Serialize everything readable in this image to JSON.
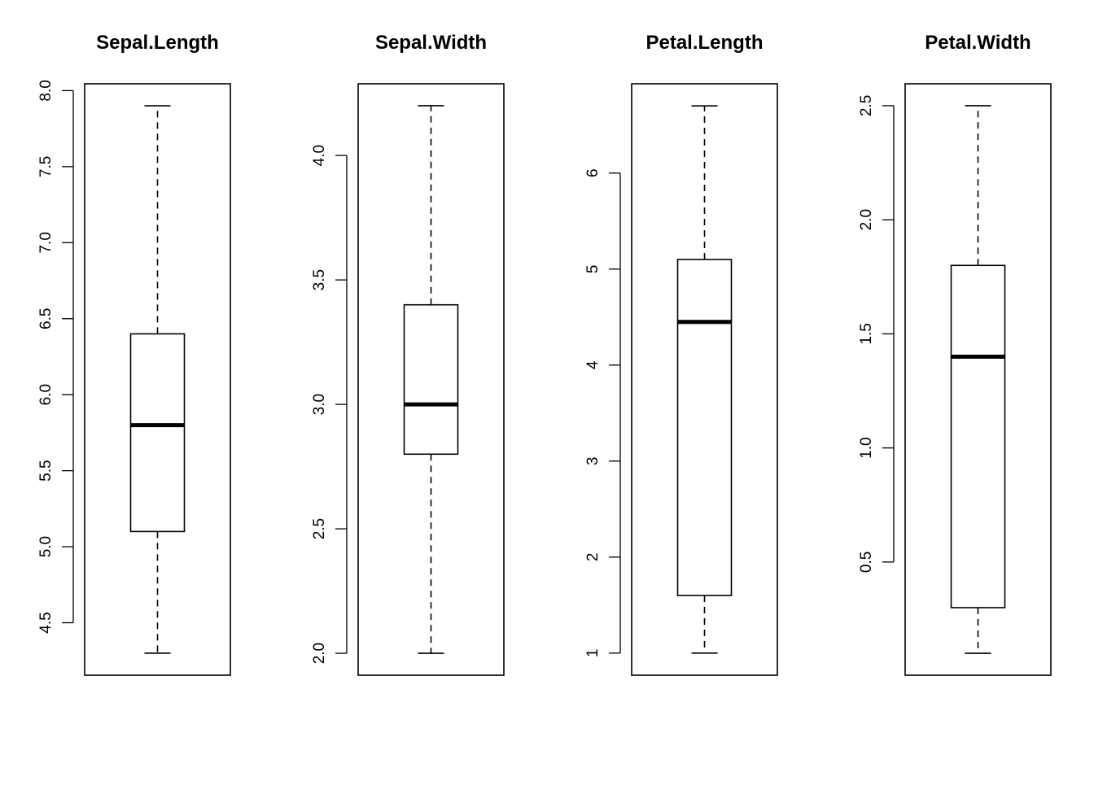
{
  "chart_data": [
    {
      "type": "box",
      "title": "Sepal.Length",
      "ylim": [
        4.155,
        8.045
      ],
      "yticks": [
        "4.5",
        "5.0",
        "5.5",
        "6.0",
        "6.5",
        "7.0",
        "7.5",
        "8.0"
      ],
      "box": {
        "min": 4.3,
        "q1": 5.1,
        "median": 5.8,
        "q3": 6.4,
        "max": 7.9
      },
      "grid": false
    },
    {
      "type": "box",
      "title": "Sepal.Width",
      "ylim": [
        1.912,
        4.288
      ],
      "yticks": [
        "2.0",
        "2.5",
        "3.0",
        "3.5",
        "4.0"
      ],
      "box": {
        "min": 2.0,
        "q1": 2.8,
        "median": 3.0,
        "q3": 3.4,
        "max": 4.2
      },
      "grid": false
    },
    {
      "type": "box",
      "title": "Petal.Length",
      "ylim": [
        0.77,
        6.93
      ],
      "yticks": [
        "1",
        "2",
        "3",
        "4",
        "5",
        "6"
      ],
      "box": {
        "min": 1.0,
        "q1": 1.6,
        "median": 4.45,
        "q3": 5.1,
        "max": 6.7
      },
      "grid": false
    },
    {
      "type": "box",
      "title": "Petal.Width",
      "ylim": [
        0.004,
        2.596
      ],
      "yticks": [
        "0.5",
        "1.0",
        "1.5",
        "2.0",
        "2.5"
      ],
      "box": {
        "min": 0.1,
        "q1": 0.3,
        "median": 1.4,
        "q3": 1.8,
        "max": 2.5
      },
      "grid": false
    }
  ]
}
